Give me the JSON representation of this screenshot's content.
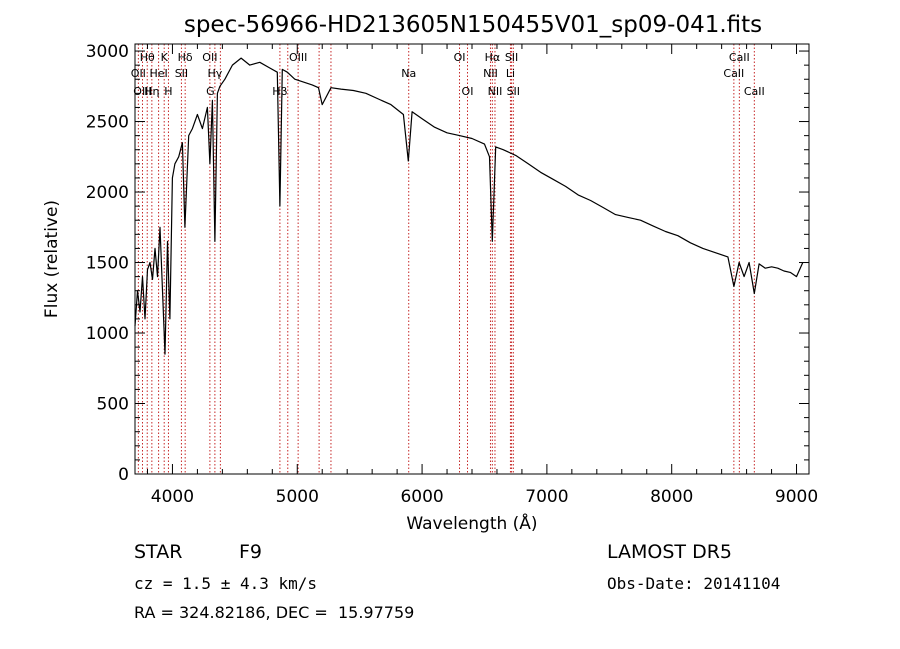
{
  "chart_data": {
    "type": "line",
    "title": "spec-56966-HD213605N150455V01_sp09-041.fits",
    "xlabel": "Wavelength (Å)",
    "ylabel": "Flux (relative)",
    "xlim": [
      3700,
      9100
    ],
    "ylim": [
      0,
      3050
    ],
    "xticks": [
      4000,
      5000,
      6000,
      7000,
      8000,
      9000
    ],
    "yticks": [
      0,
      500,
      1000,
      1500,
      2000,
      2500,
      3000
    ],
    "grid": false,
    "series": [
      {
        "x": [
          3700,
          3720,
          3740,
          3760,
          3780,
          3800,
          3820,
          3840,
          3860,
          3880,
          3900,
          3920,
          3940,
          3960,
          3980,
          4000,
          4020,
          4050,
          4080,
          4100,
          4130,
          4160,
          4200,
          4240,
          4280,
          4300,
          4320,
          4340,
          4360,
          4380,
          4420,
          4480,
          4550,
          4620,
          4700,
          4780,
          4840,
          4861,
          4880,
          4920,
          4980,
          5050,
          5120,
          5170,
          5200,
          5270,
          5350,
          5450,
          5550,
          5650,
          5750,
          5850,
          5890,
          5920,
          6000,
          6100,
          6200,
          6300,
          6400,
          6500,
          6540,
          6563,
          6590,
          6650,
          6750,
          6850,
          6950,
          7050,
          7150,
          7250,
          7350,
          7450,
          7550,
          7650,
          7750,
          7850,
          7950,
          8050,
          8150,
          8250,
          8350,
          8450,
          8498,
          8540,
          8580,
          8620,
          8662,
          8700,
          8750,
          8800,
          8850,
          8900,
          8950,
          9000,
          9050
        ],
        "y": [
          1050,
          1300,
          1150,
          1400,
          1100,
          1450,
          1500,
          1380,
          1600,
          1400,
          1750,
          1300,
          850,
          1650,
          1100,
          2100,
          2200,
          2250,
          2350,
          1750,
          2400,
          2450,
          2550,
          2450,
          2600,
          2200,
          2650,
          1650,
          2700,
          2750,
          2800,
          2900,
          2950,
          2900,
          2920,
          2880,
          2850,
          1900,
          2870,
          2850,
          2800,
          2780,
          2760,
          2740,
          2620,
          2740,
          2730,
          2720,
          2700,
          2660,
          2620,
          2550,
          2220,
          2570,
          2520,
          2460,
          2420,
          2400,
          2380,
          2340,
          2250,
          1650,
          2320,
          2300,
          2260,
          2200,
          2140,
          2090,
          2040,
          1980,
          1940,
          1890,
          1840,
          1820,
          1800,
          1760,
          1720,
          1690,
          1640,
          1600,
          1570,
          1540,
          1330,
          1500,
          1400,
          1500,
          1280,
          1490,
          1460,
          1470,
          1460,
          1440,
          1430,
          1400,
          1500
        ]
      }
    ],
    "lines": [
      {
        "name": "Hθ",
        "x": 3798,
        "row": 1
      },
      {
        "name": "K",
        "x": 3934,
        "row": 1
      },
      {
        "name": "Hδ",
        "x": 4102,
        "row": 1
      },
      {
        "name": "OII",
        "x": 4300,
        "row": 1
      },
      {
        "name": "OIII",
        "x": 5007,
        "row": 1
      },
      {
        "name": "OI",
        "x": 6300,
        "row": 1
      },
      {
        "name": "Hα",
        "x": 6563,
        "row": 1
      },
      {
        "name": "SII",
        "x": 6717,
        "row": 1
      },
      {
        "name": "CaII",
        "x": 8542,
        "row": 1
      },
      {
        "name": "OII",
        "x": 3727,
        "row": 2
      },
      {
        "name": "HeI",
        "x": 3889,
        "row": 2
      },
      {
        "name": "SII",
        "x": 4072,
        "row": 2
      },
      {
        "name": "Hγ",
        "x": 4340,
        "row": 2
      },
      {
        "name": "Na",
        "x": 5893,
        "row": 2
      },
      {
        "name": "NII",
        "x": 6548,
        "row": 2
      },
      {
        "name": "Li",
        "x": 6708,
        "row": 2
      },
      {
        "name": "CaII",
        "x": 8498,
        "row": 2
      },
      {
        "name": "OIII",
        "x": 3760,
        "row": 3
      },
      {
        "name": "Hη",
        "x": 3835,
        "row": 3
      },
      {
        "name": "H",
        "x": 3968,
        "row": 3
      },
      {
        "name": "G",
        "x": 4304,
        "row": 3
      },
      {
        "name": "Hβ",
        "x": 4861,
        "row": 3
      },
      {
        "name": "OI",
        "x": 6364,
        "row": 3
      },
      {
        "name": "NII",
        "x": 6584,
        "row": 3
      },
      {
        "name": "SII",
        "x": 6731,
        "row": 3
      },
      {
        "name": "CaII",
        "x": 8662,
        "row": 3
      }
    ],
    "extra_line_positions": [
      4384,
      4924,
      5175,
      5270
    ]
  },
  "footer": {
    "object_type": "STAR",
    "subclass": "F9",
    "survey": "LAMOST DR5",
    "cz": "cz = 1.5 ± 4.3 km/s",
    "obs_date": "Obs-Date: 20141104",
    "radec": "RA = 324.82186, DEC =  15.97759"
  }
}
